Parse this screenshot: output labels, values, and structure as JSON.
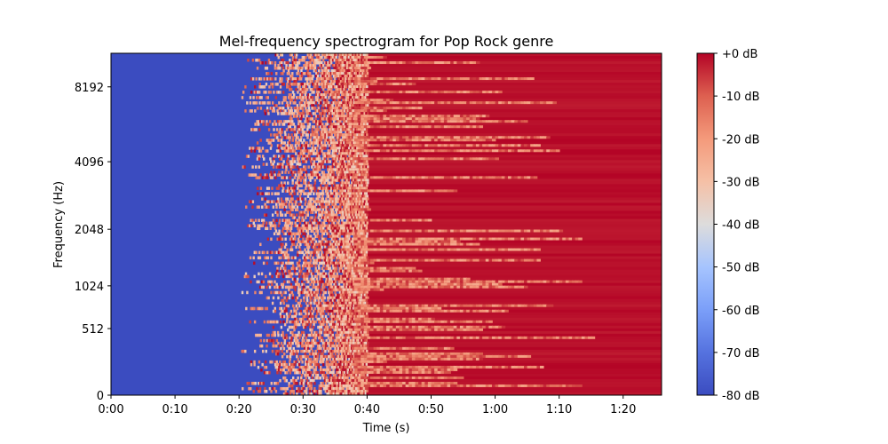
{
  "chart_data": {
    "type": "heatmap",
    "title": "Mel-frequency spectrogram for Pop Rock genre",
    "xlabel": "Time (s)",
    "ylabel": "Frequency (Hz)",
    "x_ticks": [
      "0:00",
      "0:10",
      "0:20",
      "0:30",
      "0:40",
      "0:50",
      "1:00",
      "1:10",
      "1:20"
    ],
    "x_range_seconds": [
      0,
      86
    ],
    "y_ticks": [
      "0",
      "512",
      "1024",
      "2048",
      "4096",
      "8192"
    ],
    "y_scale": "mel",
    "colormap": "coolwarm",
    "colorbar": {
      "labels": [
        "+0 dB",
        "-10 dB",
        "-20 dB",
        "-30 dB",
        "-40 dB",
        "-50 dB",
        "-60 dB",
        "-70 dB",
        "-80 dB"
      ],
      "range_db": [
        -80,
        0
      ]
    },
    "colors": {
      "low": "#3b4cc0",
      "mid": "#dddddd",
      "high": "#b40426"
    },
    "regions": [
      {
        "description_time_s": [
          0,
          17
        ],
        "level_db": -80
      },
      {
        "description_time_s": [
          17,
          38
        ],
        "level_db": "mixed"
      },
      {
        "description_time_s": [
          38,
          86
        ],
        "level_db": 0
      }
    ]
  }
}
